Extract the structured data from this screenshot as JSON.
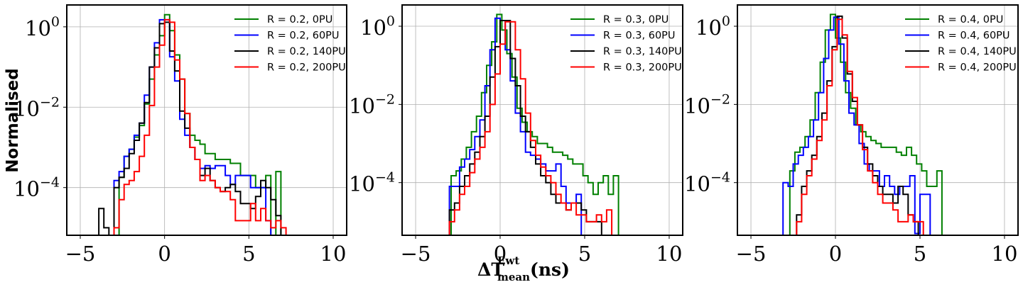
{
  "figure": {
    "ylabel": "Normalised",
    "xlabel": {
      "main": "ΔT",
      "superscript": "Ewt",
      "subscript": "mean",
      "unit": "(ns)"
    }
  },
  "colors": {
    "0PU": "#008000",
    "60PU": "#0000ff",
    "140PU": "#000000",
    "200PU": "#ff0000",
    "grid": "#b0b0b0"
  },
  "chart_data": [
    {
      "type": "histogram",
      "title": "",
      "xlabel": "ΔT mean Ewt (ns)",
      "ylabel": "Normalised",
      "yscale": "log",
      "xlim": [
        -5.8,
        10.8
      ],
      "ylim": [
        6.5e-06,
        3.5
      ],
      "bin_width": 0.3,
      "xticks": [
        -5,
        0,
        5,
        10
      ],
      "xtick_labels": [
        "−5",
        "0",
        "5",
        "10"
      ],
      "yticks": [
        1,
        0.01,
        0.0001
      ],
      "ytick_labels": [
        {
          "base": "10",
          "exp": "0"
        },
        {
          "base": "10",
          "exp": "−2"
        },
        {
          "base": "10",
          "exp": "−4"
        }
      ],
      "legend": {
        "location": "top-right",
        "entries": [
          "R = 0.2, 0PU",
          "R = 0.2, 60PU",
          "R = 0.2, 140PU",
          "R = 0.2, 200PU"
        ]
      },
      "series": [
        {
          "name": "R = 0.2, 0PU",
          "color_key": "0PU",
          "start": -2.7,
          "values": [
            0.00018,
            0.0006,
            0.0009,
            0.0018,
            0.0035,
            0.012,
            0.05,
            0.2,
            0.6,
            2.0,
            0.8,
            0.2,
            0.05,
            0.007,
            0.002,
            0.0015,
            0.0012,
            0.0007,
            0.0007,
            0.0005,
            0.0005,
            0.0005,
            0.0004,
            0.0004,
            0.0002,
            0.0002,
            0.0002,
            0.0001,
            0.0001,
            0.0002,
            0,
            0.00025
          ]
        },
        {
          "name": "R = 0.2, 60PU",
          "color_key": "60PU",
          "start": -3.0,
          "values": [
            0.00015,
            0.00025,
            0.0006,
            0.0009,
            0.002,
            0.004,
            0.02,
            0.1,
            0.4,
            1.5,
            1.5,
            0.18,
            0.045,
            0.005,
            0.002,
            0.001,
            0.0005,
            0.0003,
            0.00035,
            0.0003,
            0.00035,
            0.00035,
            0.0002,
            0.00012,
            0.0002,
            0.0002,
            0.0002,
            0.0001,
            0.0001,
            0.0001,
            1.5e-05
          ]
        },
        {
          "name": "R = 0.2, 140PU",
          "color_key": "140PU",
          "start": -3.9,
          "values": [
            3e-05,
            1e-05,
            0,
            0.0001,
            0.00018,
            0.0003,
            0.0007,
            0.0015,
            0.004,
            0.013,
            0.1,
            0.3,
            1.2,
            1.3,
            0.25,
            0.08,
            0.008,
            0.003,
            0.001,
            0.0005,
            0.0002,
            0.0003,
            0.00015,
            0.0001,
            8e-05,
            0.0001,
            0.00012,
            8e-05,
            4e-05,
            4e-05,
            3e-05,
            6e-05,
            0.00015,
            0.0001,
            5e-05,
            2e-05
          ]
        },
        {
          "name": "R = 0.2, 200PU",
          "color_key": "200PU",
          "start": -3.0,
          "values": [
            1e-05,
            5e-05,
            0.00012,
            0.00015,
            0.00025,
            0.0006,
            0.002,
            0.011,
            0.1,
            0.35,
            1.5,
            1.3,
            0.15,
            0.05,
            0.007,
            0.001,
            0.0005,
            0.00015,
            0.0002,
            0.00015,
            0.0001,
            8e-05,
            8e-05,
            5e-05,
            1.5e-05,
            1.5e-05,
            1.5e-05,
            4e-05,
            1.5e-05,
            3e-05,
            1.5e-05,
            1e-05,
            1.5e-05,
            1e-05
          ]
        }
      ]
    },
    {
      "type": "histogram",
      "title": "",
      "xlabel": "ΔT mean Ewt (ns)",
      "ylabel": "",
      "yscale": "log",
      "xlim": [
        -5.8,
        10.8
      ],
      "ylim": [
        4.5e-06,
        3.5
      ],
      "bin_width": 0.3,
      "xticks": [
        -5,
        0,
        5,
        10
      ],
      "xtick_labels": [
        "−5",
        "0",
        "5",
        "10"
      ],
      "yticks": [
        1,
        0.01,
        0.0001
      ],
      "ytick_labels": [
        {
          "base": "10",
          "exp": "0"
        },
        {
          "base": "10",
          "exp": "−2"
        },
        {
          "base": "10",
          "exp": "−4"
        }
      ],
      "legend": {
        "location": "top-right",
        "entries": [
          "R = 0.3, 0PU",
          "R = 0.3, 60PU",
          "R = 0.3, 140PU",
          "R = 0.3, 200PU"
        ]
      },
      "series": [
        {
          "name": "R = 0.3, 0PU",
          "color_key": "0PU",
          "start": -2.9,
          "values": [
            0.00015,
            0.0002,
            0.0004,
            0.0008,
            0.002,
            0.005,
            0.02,
            0.1,
            0.4,
            2.0,
            0.8,
            0.2,
            0.05,
            0.008,
            0.0035,
            0.002,
            0.0015,
            0.001,
            0.001,
            0.0008,
            0.0006,
            0.0006,
            0.0005,
            0.0004,
            0.0003,
            0.0003,
            0.00015,
            0.0001,
            5e-05,
            0.0001,
            0.00015,
            5e-05,
            0.00015
          ]
        },
        {
          "name": "R = 0.3, 60PU",
          "color_key": "60PU",
          "start": -3.0,
          "values": [
            8e-05,
            8e-05,
            0.00025,
            0.0004,
            0.0007,
            0.0015,
            0.004,
            0.03,
            0.25,
            1.6,
            1.4,
            0.25,
            0.04,
            0.006,
            0.002,
            0.0006,
            0.0005,
            0.0004,
            0.0003,
            0.0002,
            0.0002,
            0.0003,
            8e-05,
            3e-05,
            3e-05,
            5e-05
          ]
        },
        {
          "name": "R = 0.3, 140PU",
          "color_key": "140PU",
          "start": -3.0,
          "values": [
            2e-05,
            3e-05,
            8e-05,
            0.00015,
            0.0003,
            0.0006,
            0.0015,
            0.005,
            0.05,
            0.3,
            1.4,
            1.4,
            0.15,
            0.03,
            0.005,
            0.002,
            0.0008,
            0.0003,
            0.00015,
            0.0001,
            5e-05,
            3e-05,
            3e-05,
            2e-05,
            3e-05,
            3e-05,
            2e-05,
            1e-05,
            1e-05,
            1e-05
          ]
        },
        {
          "name": "R = 0.3, 200PU",
          "color_key": "200PU",
          "start": -3.0,
          "values": [
            1e-05,
            2e-05,
            5e-05,
            8e-05,
            0.00018,
            0.0004,
            0.0008,
            0.002,
            0.01,
            0.06,
            0.35,
            1.3,
            1.3,
            0.25,
            0.045,
            0.006,
            0.0012,
            0.0005,
            0.00025,
            0.00015,
            0.0001,
            5e-05,
            3e-05,
            2e-05,
            3e-05,
            1.5e-05,
            1.5e-05,
            1e-05,
            1e-05,
            1.5e-05,
            1e-05,
            2e-05
          ]
        }
      ]
    },
    {
      "type": "histogram",
      "title": "",
      "xlabel": "ΔT mean Ewt (ns)",
      "ylabel": "",
      "yscale": "log",
      "xlim": [
        -5.8,
        10.8
      ],
      "ylim": [
        4.5e-06,
        3.5
      ],
      "bin_width": 0.3,
      "xticks": [
        -5,
        0,
        5,
        10
      ],
      "xtick_labels": [
        "−5",
        "0",
        "5",
        "10"
      ],
      "yticks": [
        1,
        0.01,
        0.0001
      ],
      "ytick_labels": [
        {
          "base": "10",
          "exp": "0"
        },
        {
          "base": "10",
          "exp": "−2"
        },
        {
          "base": "10",
          "exp": "−4"
        }
      ],
      "legend": {
        "location": "top-right",
        "entries": [
          "R = 0.4, 0PU",
          "R = 0.4, 60PU",
          "R = 0.4, 140PU",
          "R = 0.4, 200PU"
        ]
      },
      "series": [
        {
          "name": "R = 0.4, 0PU",
          "color_key": "0PU",
          "start": -2.7,
          "values": [
            0.0002,
            0.0006,
            0.0008,
            0.0015,
            0.004,
            0.02,
            0.12,
            0.8,
            2.0,
            0.5,
            0.12,
            0.02,
            0.008,
            0.003,
            0.002,
            0.0015,
            0.0012,
            0.001,
            0.0008,
            0.0008,
            0.0008,
            0.0006,
            0.0005,
            0.0008,
            0.0005,
            0.0003,
            0.0002,
            8e-05,
            8e-05,
            0.0002
          ]
        },
        {
          "name": "R = 0.4, 60PU",
          "color_key": "60PU",
          "start": -3.1,
          "values": [
            0.0001,
            8e-05,
            0.0003,
            0.0005,
            0.0008,
            0.0015,
            0.004,
            0.02,
            0.15,
            0.8,
            1.7,
            0.35,
            0.04,
            0.006,
            0.003,
            0.001,
            0.0003,
            0.0002,
            0.0002,
            8e-05,
            0.00015,
            8e-05,
            5e-05,
            8e-05,
            8e-05,
            0.00015,
            5e-06,
            5e-05,
            5e-05
          ]
        },
        {
          "name": "R = 0.4, 140PU",
          "color_key": "140PU",
          "start": -2.3,
          "values": [
            1.5e-05,
            8e-05,
            0.0002,
            0.0005,
            0.0015,
            0.006,
            0.04,
            0.3,
            1.8,
            0.5,
            0.06,
            0.012,
            0.003,
            0.0008,
            0.0003,
            0.00015,
            8e-05,
            5e-05,
            5e-05,
            3e-05,
            8e-05,
            5e-05,
            1.5e-05,
            1e-05
          ]
        },
        {
          "name": "R = 0.4, 200PU",
          "color_key": "200PU",
          "start": -2.3,
          "values": [
            1e-05,
            5e-05,
            0.00015,
            0.0004,
            0.0012,
            0.004,
            0.03,
            0.25,
            1.5,
            0.6,
            0.07,
            0.015,
            0.003,
            0.0007,
            0.0002,
            0.0001,
            5e-05,
            3e-05,
            3e-05,
            2e-05,
            1e-05,
            1e-05,
            1.5e-05,
            1e-05,
            1e-05
          ]
        }
      ]
    }
  ]
}
